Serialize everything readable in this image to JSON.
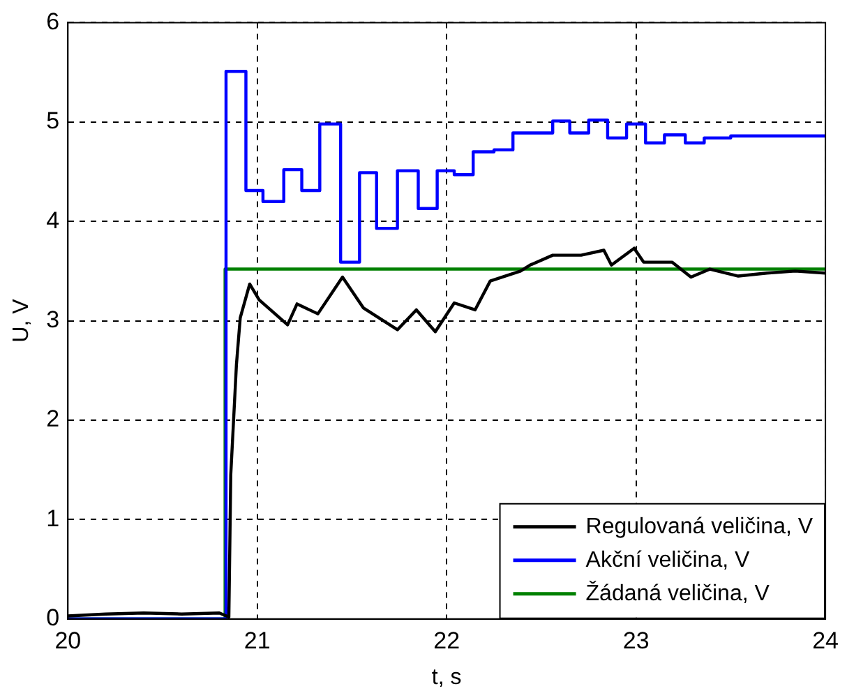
{
  "chart_data": {
    "type": "line",
    "xlabel": "t, s",
    "ylabel": "U, V",
    "xlim": [
      20,
      24
    ],
    "xticks": [
      20,
      21,
      22,
      23,
      24
    ],
    "ylim": [
      0,
      6
    ],
    "yticks": [
      0,
      1,
      2,
      3,
      4,
      5,
      6
    ],
    "grid": true,
    "legend": "bottom right",
    "series": [
      {
        "name": "Regulovaná veličina, V",
        "color": "#000000",
        "x": [
          20,
          20.2,
          20.4,
          20.6,
          20.8,
          20.85,
          20.86,
          20.89,
          20.91,
          20.96,
          21.01,
          21.16,
          21.21,
          21.32,
          21.45,
          21.56,
          21.74,
          21.84,
          21.94,
          22.04,
          22.15,
          22.23,
          22.39,
          22.44,
          22.56,
          22.71,
          22.83,
          22.87,
          22.99,
          23.04,
          23.19,
          23.29,
          23.39,
          23.54,
          23.69,
          23.84,
          24
        ],
        "values": [
          0.03,
          0.05,
          0.06,
          0.05,
          0.06,
          0.02,
          1.45,
          2.56,
          3.03,
          3.37,
          3.21,
          2.96,
          3.17,
          3.07,
          3.44,
          3.13,
          2.91,
          3.11,
          2.89,
          3.18,
          3.11,
          3.4,
          3.5,
          3.56,
          3.66,
          3.66,
          3.71,
          3.56,
          3.73,
          3.59,
          3.59,
          3.44,
          3.52,
          3.45,
          3.48,
          3.5,
          3.48
        ]
      },
      {
        "name": "Akční veličina, V",
        "color": "#0000ff",
        "type": "step",
        "x": [
          20,
          20.835,
          20.94,
          21.03,
          21.14,
          21.235,
          21.33,
          21.44,
          21.54,
          21.63,
          21.74,
          21.85,
          21.95,
          22.04,
          22.14,
          22.25,
          22.35,
          22.56,
          22.65,
          22.75,
          22.85,
          22.95,
          23.05,
          23.15,
          23.26,
          23.36,
          23.5,
          24
        ],
        "values": [
          0,
          5.51,
          4.31,
          4.2,
          4.52,
          4.31,
          4.98,
          3.59,
          4.49,
          3.93,
          4.51,
          4.13,
          4.51,
          4.47,
          4.7,
          4.72,
          4.89,
          5.01,
          4.89,
          5.02,
          4.84,
          4.98,
          4.79,
          4.87,
          4.79,
          4.84,
          4.86,
          4.86
        ]
      },
      {
        "name": "Žádaná veličina, V",
        "color": "#008000",
        "type": "step",
        "x": [
          20,
          20.83,
          24
        ],
        "values": [
          0,
          3.52,
          3.52
        ]
      }
    ]
  }
}
